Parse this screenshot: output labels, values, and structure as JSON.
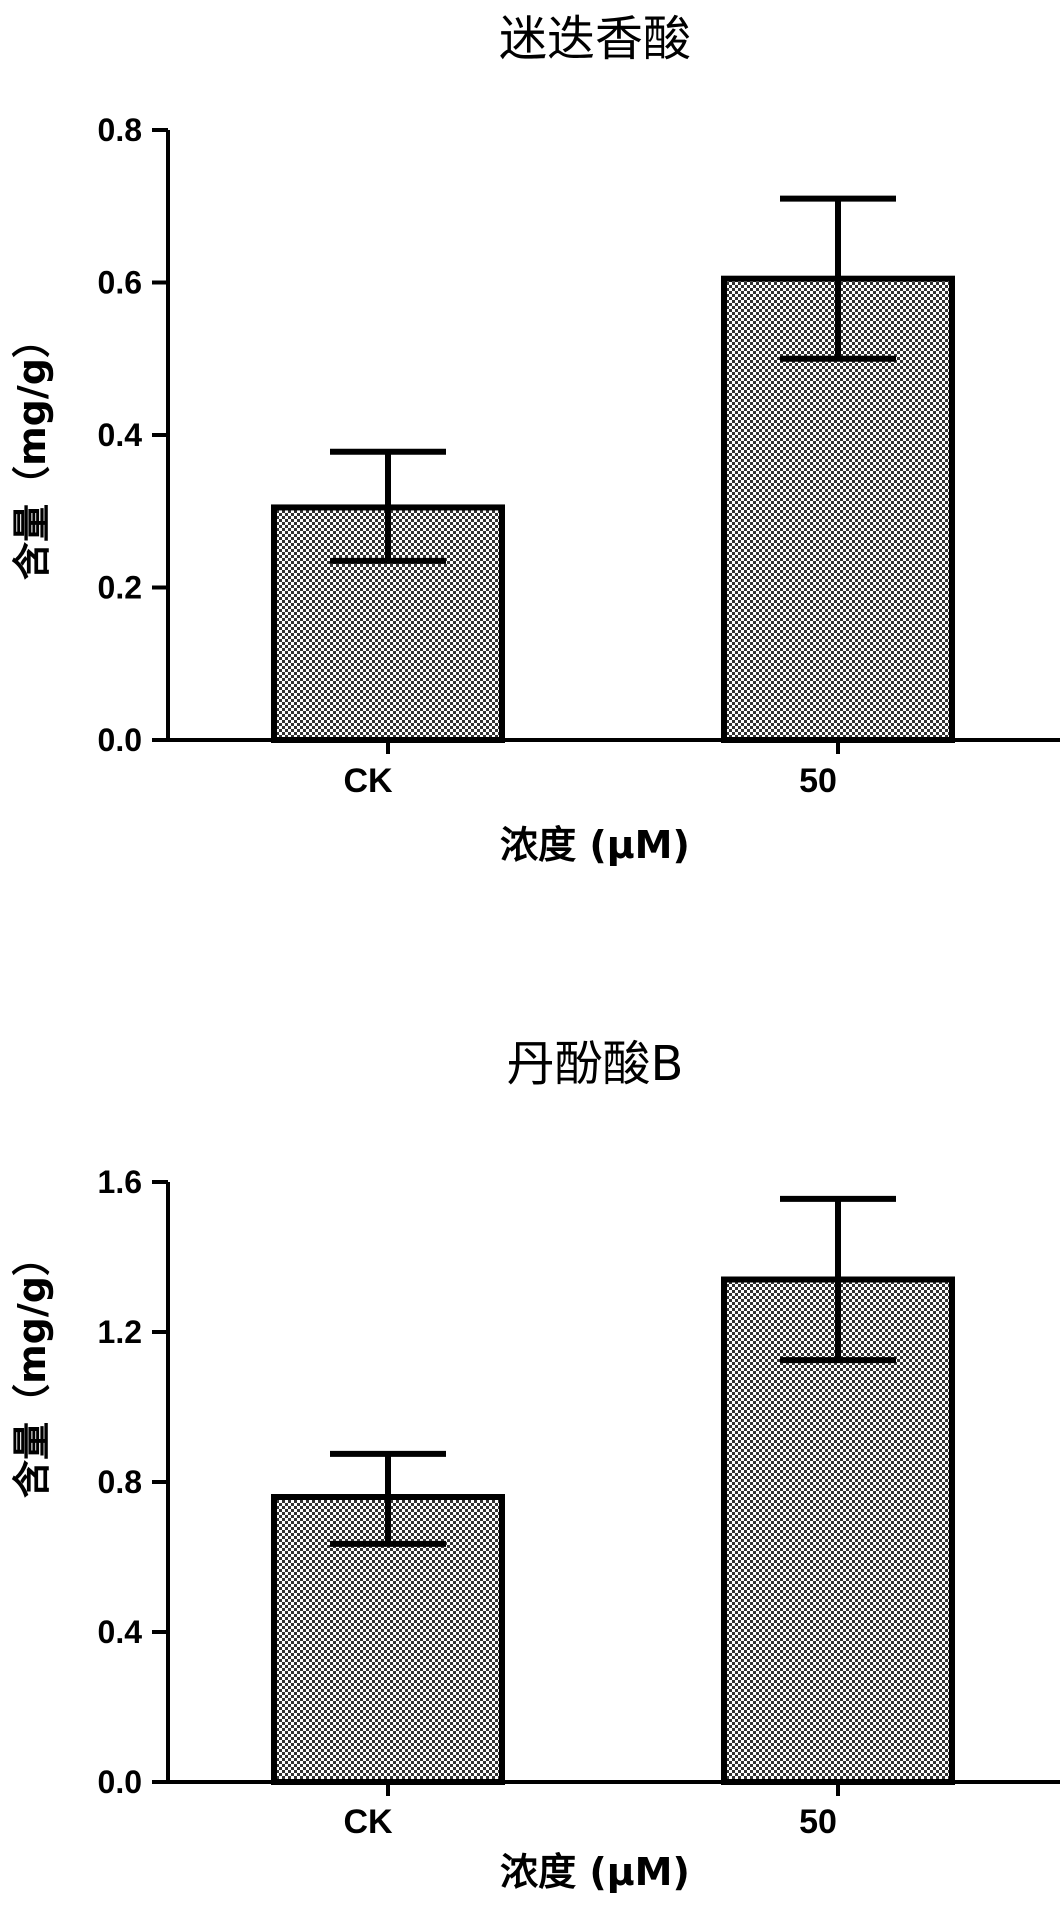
{
  "chart_data": [
    {
      "type": "bar",
      "title": "迷迭香酸",
      "xlabel": "浓度 (μM)",
      "ylabel": "含量（mg/g）",
      "categories": [
        "CK",
        "50"
      ],
      "values": [
        0.305,
        0.605
      ],
      "error_upper": [
        0.378,
        0.71
      ],
      "error_lower": [
        0.235,
        0.5
      ],
      "ylim": [
        0,
        0.8
      ],
      "yticks": [
        0.0,
        0.2,
        0.4,
        0.6,
        0.8
      ],
      "ytick_labels": [
        "0.0",
        "0.2",
        "0.4",
        "0.6",
        "0.8"
      ],
      "grid": false,
      "bar_fill": "checkered grey pattern",
      "colors": {
        "bar_light": "#ffffff",
        "bar_dark": "#333333",
        "axis": "#000000"
      }
    },
    {
      "type": "bar",
      "title": "丹酚酸B",
      "xlabel": "浓度 (μM)",
      "ylabel": "含量（mg/g）",
      "categories": [
        "CK",
        "50"
      ],
      "values": [
        0.76,
        1.34
      ],
      "error_upper": [
        0.875,
        1.555
      ],
      "error_lower": [
        0.635,
        1.125
      ],
      "ylim": [
        0,
        1.6
      ],
      "yticks": [
        0.0,
        0.4,
        0.8,
        1.2,
        1.6
      ],
      "ytick_labels": [
        "0.0",
        "0.4",
        "0.8",
        "1.2",
        "1.6"
      ],
      "grid": false,
      "bar_fill": "checkered grey pattern",
      "colors": {
        "bar_light": "#ffffff",
        "bar_dark": "#333333",
        "axis": "#000000"
      }
    }
  ]
}
